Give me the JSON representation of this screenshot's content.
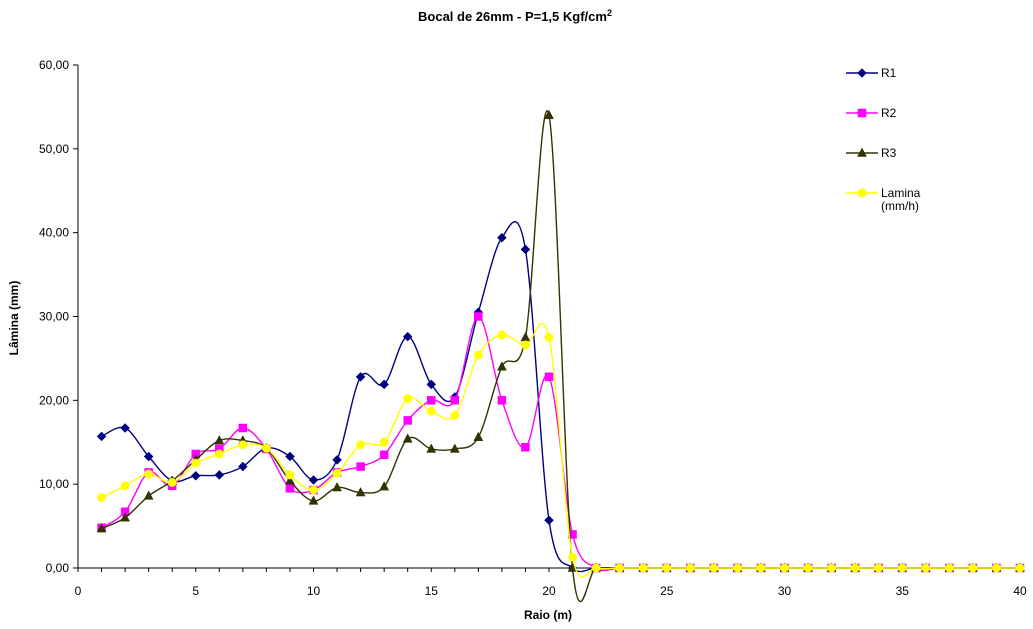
{
  "chart_data": {
    "type": "line",
    "title_main": "Bocal de 26mm - P=1,5 Kgf/cm",
    "title_sup": "2",
    "xlabel": "Raio (m)",
    "ylabel": "Lâmina (mm)",
    "xlim": [
      0,
      40
    ],
    "ylim": [
      0,
      60
    ],
    "x_ticks": [
      "0",
      "5",
      "10",
      "15",
      "20",
      "25",
      "30",
      "35",
      "40"
    ],
    "y_ticks": [
      "0,00",
      "10,00",
      "20,00",
      "30,00",
      "40,00",
      "50,00",
      "60,00"
    ],
    "grid": false,
    "legend_position": "top-right",
    "x": [
      1,
      2,
      3,
      4,
      5,
      6,
      7,
      8,
      9,
      10,
      11,
      12,
      13,
      14,
      15,
      16,
      17,
      18,
      19,
      20,
      21,
      22,
      23,
      24,
      25,
      26,
      27,
      28,
      29,
      30,
      31,
      32,
      33,
      34,
      35,
      36,
      37,
      38,
      39,
      40
    ],
    "series": [
      {
        "name": "R1",
        "color": "#000080",
        "marker": "diamond",
        "values": [
          15.7,
          16.7,
          13.3,
          10.4,
          11.0,
          11.1,
          12.1,
          14.3,
          13.3,
          10.5,
          12.9,
          22.8,
          21.9,
          27.6,
          21.9,
          20.4,
          30.5,
          39.4,
          38.0,
          5.7,
          0,
          0,
          0,
          0,
          0,
          0,
          0,
          0,
          0,
          0,
          0,
          0,
          0,
          0,
          0,
          0,
          0,
          0,
          0,
          0
        ]
      },
      {
        "name": "R2",
        "color": "#ff00ff",
        "marker": "square",
        "values": [
          4.8,
          6.7,
          11.4,
          9.8,
          13.6,
          14.2,
          16.7,
          14.2,
          9.5,
          9.3,
          11.4,
          12.1,
          13.5,
          17.6,
          20.0,
          20.0,
          30.0,
          20.0,
          14.4,
          22.8,
          4.0,
          0,
          0,
          0,
          0,
          0,
          0,
          0,
          0,
          0,
          0,
          0,
          0,
          0,
          0,
          0,
          0,
          0,
          0,
          0
        ]
      },
      {
        "name": "R3",
        "color": "#333300",
        "marker": "triangle",
        "values": [
          4.7,
          6.0,
          8.6,
          10.4,
          12.9,
          15.2,
          15.2,
          14.3,
          10.4,
          8.0,
          9.6,
          9.0,
          9.7,
          15.4,
          14.2,
          14.2,
          15.6,
          24.0,
          27.5,
          54.0,
          0,
          0,
          0,
          0,
          0,
          0,
          0,
          0,
          0,
          0,
          0,
          0,
          0,
          0,
          0,
          0,
          0,
          0,
          0,
          0
        ]
      },
      {
        "name": "Lamina (mm/h)",
        "color": "#ffff00",
        "marker": "circle",
        "values": [
          8.4,
          9.8,
          11.2,
          10.2,
          12.5,
          13.6,
          14.7,
          14.3,
          11.1,
          9.3,
          11.3,
          14.7,
          15.0,
          20.2,
          18.7,
          18.2,
          25.4,
          27.8,
          26.6,
          27.5,
          1.3,
          0,
          0,
          0,
          0,
          0,
          0,
          0,
          0,
          0,
          0,
          0,
          0,
          0,
          0,
          0,
          0,
          0,
          0,
          0
        ]
      }
    ]
  }
}
